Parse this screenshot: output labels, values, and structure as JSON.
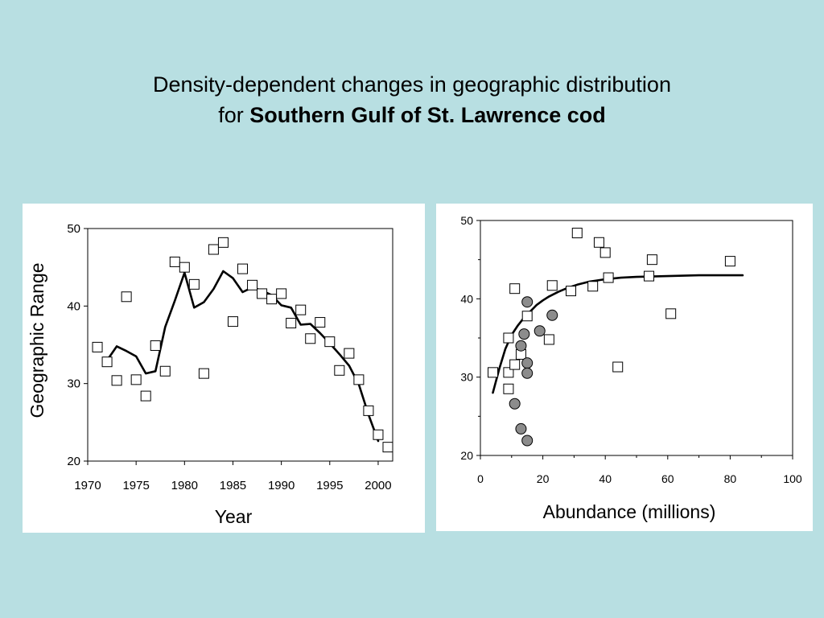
{
  "header": {
    "line1": "Density-dependent changes in geographic distribution",
    "line2_prefix": "for",
    "line2_bold": "Southern Gulf of St. Lawrence cod"
  },
  "colors": {
    "background": "#b8dfe2",
    "panel": "#ffffff",
    "filled_marker": "#8c8c8c"
  },
  "chart_data": [
    {
      "type": "scatter",
      "title": "",
      "xlabel": "Year",
      "ylabel": "Geographic Range",
      "xlim": [
        1970,
        2001.5
      ],
      "ylim": [
        20,
        50
      ],
      "xticks": [
        1970,
        1975,
        1980,
        1985,
        1990,
        1995,
        2000
      ],
      "yticks": [
        20,
        30,
        40,
        50
      ],
      "series": [
        {
          "marker": "open-square",
          "x": [
            1971,
            1972,
            1973,
            1974,
            1975,
            1976,
            1977,
            1978,
            1979,
            1980,
            1981,
            1982,
            1983,
            1984,
            1985,
            1986,
            1987,
            1988,
            1989,
            1990,
            1991,
            1992,
            1993,
            1994,
            1995,
            1996,
            1997,
            1998,
            1999,
            2000,
            2001
          ],
          "y": [
            34.7,
            32.8,
            30.4,
            41.2,
            30.5,
            28.4,
            34.9,
            31.6,
            45.7,
            45.0,
            42.8,
            31.3,
            47.3,
            48.2,
            38.0,
            44.8,
            42.7,
            41.6,
            40.9,
            41.6,
            37.8,
            39.5,
            35.8,
            37.9,
            35.4,
            31.7,
            33.9,
            30.5,
            26.5,
            23.4,
            21.8
          ]
        },
        {
          "marker": "line",
          "x": [
            1972,
            1973,
            1974,
            1975,
            1976,
            1977,
            1978,
            1979,
            1980,
            1981,
            1982,
            1983,
            1984,
            1985,
            1986,
            1987,
            1988,
            1989,
            1990,
            1991,
            1992,
            1993,
            1994,
            1995,
            1996,
            1997,
            1998,
            1999,
            2000
          ],
          "y": [
            33.0,
            34.8,
            34.2,
            33.5,
            31.3,
            31.6,
            37.3,
            40.7,
            44.3,
            39.8,
            40.5,
            42.2,
            44.5,
            43.6,
            41.8,
            42.4,
            42.0,
            41.4,
            40.1,
            39.8,
            37.6,
            37.7,
            36.5,
            35.2,
            33.8,
            32.3,
            29.9,
            26.0,
            22.6
          ]
        }
      ]
    },
    {
      "type": "scatter",
      "title": "",
      "xlabel": "Abundance (millions)",
      "ylabel": "",
      "xlim": [
        0,
        100
      ],
      "ylim": [
        20,
        50
      ],
      "xticks": [
        0,
        20,
        40,
        60,
        80,
        100
      ],
      "yticks": [
        20,
        30,
        40,
        50
      ],
      "series": [
        {
          "marker": "open-square",
          "x": [
            4,
            9,
            9,
            9,
            11,
            11,
            13,
            15,
            23,
            22,
            29,
            31,
            36,
            38,
            40,
            41,
            55,
            54,
            61,
            44,
            80
          ],
          "y": [
            30.6,
            30.6,
            28.5,
            35.0,
            41.3,
            31.6,
            32.9,
            37.8,
            41.7,
            34.8,
            41.0,
            48.4,
            41.6,
            47.2,
            45.9,
            42.7,
            45.0,
            42.9,
            38.1,
            31.3,
            44.8
          ]
        },
        {
          "marker": "filled-circle",
          "x": [
            11,
            13,
            14,
            15,
            15,
            15,
            15,
            19,
            23,
            13
          ],
          "y": [
            26.6,
            34.0,
            35.5,
            39.6,
            31.8,
            30.5,
            21.9,
            35.9,
            37.9,
            23.4
          ]
        },
        {
          "marker": "line",
          "x": [
            4,
            6,
            8,
            10,
            12,
            14,
            16,
            18,
            20,
            22,
            25,
            28,
            31,
            35,
            40,
            45,
            50,
            55,
            60,
            65,
            70,
            75,
            80,
            84
          ],
          "y": [
            28.0,
            31.0,
            33.6,
            35.4,
            36.6,
            37.6,
            38.4,
            39.2,
            39.8,
            40.3,
            40.9,
            41.4,
            41.8,
            42.2,
            42.5,
            42.7,
            42.8,
            42.85,
            42.9,
            42.95,
            43.0,
            43.0,
            43.0,
            43.0
          ]
        }
      ]
    }
  ]
}
